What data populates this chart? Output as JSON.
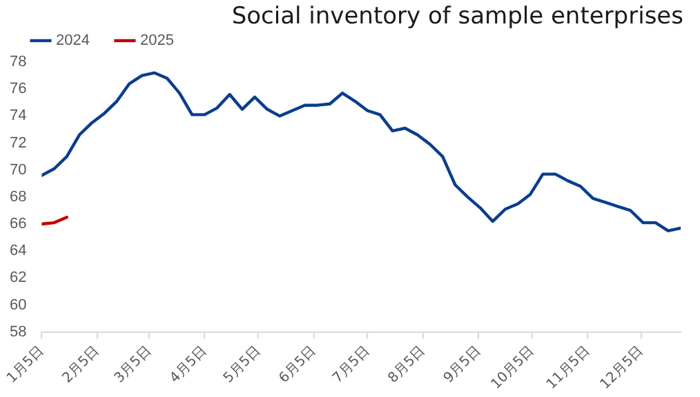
{
  "chart_data": {
    "type": "line",
    "title": "Social inventory of sample enterprises",
    "xlim": [
      "--01-05",
      "--12-27"
    ],
    "xticks": [
      {
        "value": "--01-05",
        "label": "1月5日"
      },
      {
        "value": "--02-05",
        "label": "2月5日"
      },
      {
        "value": "--03-05",
        "label": "3月5日"
      },
      {
        "value": "--04-05",
        "label": "4月5日"
      },
      {
        "value": "--05-05",
        "label": "5月5日"
      },
      {
        "value": "--06-05",
        "label": "6月5日"
      },
      {
        "value": "--07-05",
        "label": "7月5日"
      },
      {
        "value": "--08-05",
        "label": "8月5日"
      },
      {
        "value": "--09-05",
        "label": "9月5日"
      },
      {
        "value": "--10-05",
        "label": "10月5日"
      },
      {
        "value": "--11-05",
        "label": "11月5日"
      },
      {
        "value": "--12-05",
        "label": "12月5日"
      }
    ],
    "ylim": [
      58,
      78
    ],
    "yticks": [
      58,
      60,
      62,
      64,
      66,
      68,
      70,
      72,
      74,
      76,
      78
    ],
    "grid": false,
    "legend": "top left",
    "marker": "none",
    "line_style": "solid",
    "series": [
      {
        "name": "2024",
        "color": "#0a3d8f",
        "x": [
          "--01-05",
          "--01-12",
          "--01-19",
          "--01-26",
          "--02-02",
          "--02-09",
          "--02-16",
          "--02-23",
          "--03-01",
          "--03-08",
          "--03-15",
          "--03-22",
          "--03-29",
          "--04-05",
          "--04-12",
          "--04-19",
          "--04-26",
          "--05-03",
          "--05-10",
          "--05-17",
          "--05-24",
          "--05-31",
          "--06-07",
          "--06-14",
          "--06-21",
          "--06-28",
          "--07-05",
          "--07-12",
          "--07-19",
          "--07-26",
          "--08-02",
          "--08-09",
          "--08-16",
          "--08-23",
          "--08-30",
          "--09-06",
          "--09-13",
          "--09-20",
          "--09-27",
          "--10-04",
          "--10-11",
          "--10-18",
          "--10-25",
          "--11-01",
          "--11-08",
          "--11-15",
          "--11-22",
          "--11-29",
          "--12-06",
          "--12-13",
          "--12-20",
          "--12-27"
        ],
        "values": [
          69.6,
          70.1,
          71.0,
          72.6,
          73.5,
          74.2,
          75.1,
          76.4,
          77.0,
          77.2,
          76.8,
          75.7,
          74.1,
          74.1,
          74.6,
          75.6,
          74.5,
          75.4,
          74.5,
          74.0,
          74.4,
          74.8,
          74.8,
          74.9,
          75.7,
          75.1,
          74.4,
          74.1,
          72.9,
          73.1,
          72.6,
          71.9,
          71.0,
          68.9,
          68.0,
          67.2,
          66.2,
          67.1,
          67.5,
          68.2,
          69.7,
          69.7,
          69.2,
          68.8,
          67.9,
          67.6,
          67.3,
          67.0,
          66.1,
          66.1,
          65.5,
          65.7
        ]
      },
      {
        "name": "2025",
        "color": "#c00000",
        "x": [
          "--01-05",
          "--01-12",
          "--01-19"
        ],
        "values": [
          66.0,
          66.1,
          66.5
        ]
      }
    ]
  }
}
